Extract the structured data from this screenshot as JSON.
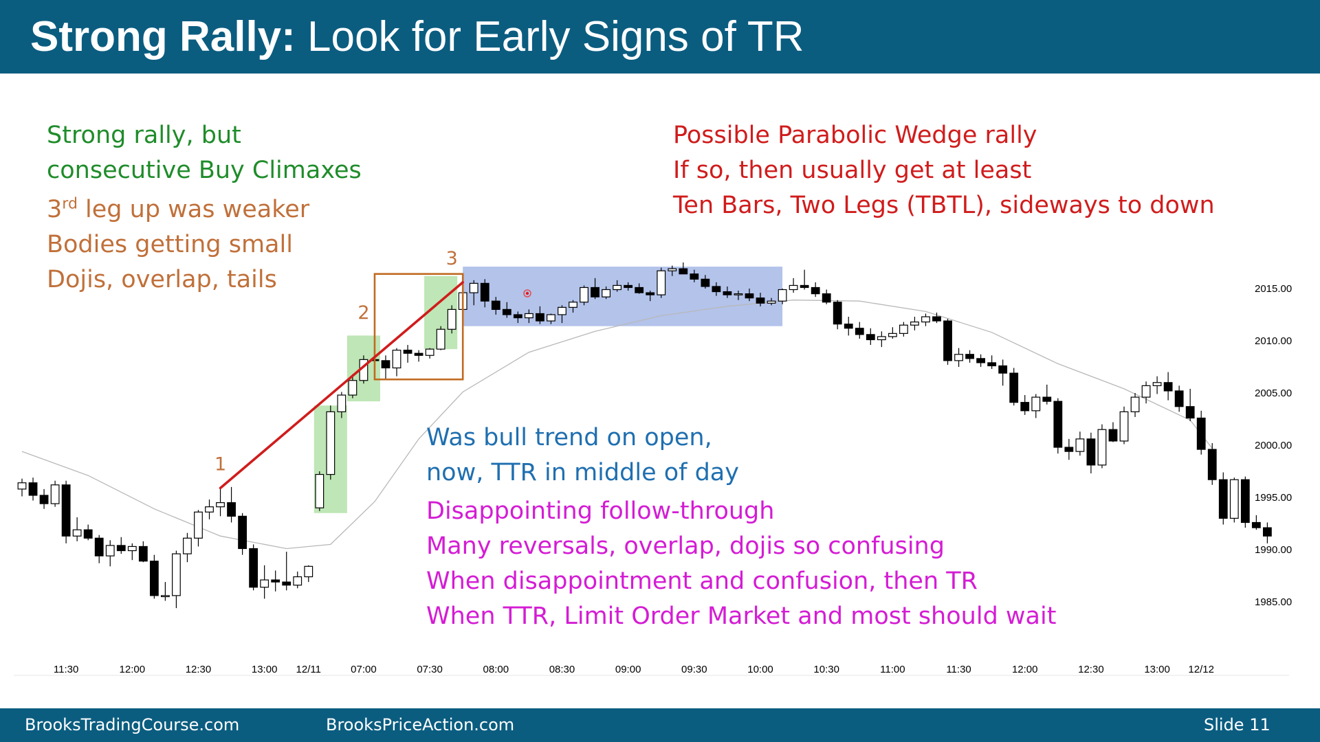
{
  "slide": {
    "title_bold": "Strong Rally:",
    "title_rest": " Look for Early Signs of TR"
  },
  "footer": {
    "left": "BrooksTradingCourse.com",
    "center": "BrooksPriceAction.com",
    "right": "Slide  11"
  },
  "notes": {
    "green": [
      "Strong rally, but",
      "consecutive Buy Climaxes"
    ],
    "brown_first_pre": "3",
    "brown_first_sup": "rd",
    "brown_first_post": " leg up was weaker",
    "brown": [
      "Bodies getting small",
      "Dojis, overlap, tails"
    ],
    "red": [
      "Possible Parabolic Wedge rally",
      "If so, then usually get at least",
      "Ten Bars, Two Legs (TBTL), sideways to down"
    ],
    "blue": [
      "Was bull trend on open,",
      "now, TTR in middle of day"
    ],
    "magenta": [
      "Disappointing follow-through",
      "Many reversals, overlap, dojis so confusing",
      "When disappointment and confusion, then TR",
      "When TTR, Limit Order Market and most should wait"
    ]
  },
  "colors": {
    "header": "#0b5d80",
    "bull_candle": "#ffffff",
    "bear_candle": "#000000",
    "moving_average": "#b8b8b8",
    "wedge_line": "#d01c1c",
    "climax_box": "#c06a20",
    "trading_range_box": "#b3c3ea",
    "climax_bar_highlight": "#bfe6b6",
    "label_orange": "#c0703a"
  },
  "chart_data": {
    "type": "candlestick",
    "y_ticks": [
      "2015.00",
      "2010.00",
      "2005.00",
      "2000.00",
      "1995.00",
      "1990.00",
      "1985.00"
    ],
    "y_tick_values": [
      2015,
      2010,
      2005,
      2000,
      1995,
      1990,
      1985
    ],
    "ylim": [
      1983,
      2018.5
    ],
    "x_ticks": [
      "11:30",
      "12:00",
      "12:30",
      "13:00",
      "12/11",
      "07:00",
      "07:30",
      "08:00",
      "08:30",
      "09:00",
      "09:30",
      "10:00",
      "10:30",
      "11:00",
      "11:30",
      "12:00",
      "12:30",
      "13:00",
      "12/12"
    ],
    "x_tick_bar_index": [
      4,
      10,
      16,
      22,
      26,
      31,
      37,
      43,
      49,
      55,
      61,
      67,
      73,
      79,
      85,
      91,
      97,
      103,
      107
    ],
    "leg_labels": [
      "1",
      "2",
      "3"
    ],
    "leg_label_bar_index": [
      18,
      31,
      39
    ],
    "leg_label_values": [
      1997.6,
      2012.1,
      2017.3
    ],
    "wedge_line": {
      "from_bar": 18,
      "from_value": 1995.9,
      "to_bar": 40,
      "to_value": 2015.6
    },
    "trading_range_box": {
      "from_bar": 40,
      "to_bar": 69,
      "low": 2011.4,
      "high": 2017.1
    },
    "climax_box": {
      "from_bar": 32,
      "to_bar": 40,
      "low": 2006.3,
      "high": 2016.4
    },
    "climax_highlights": [
      {
        "from_bar": 26.5,
        "to_bar": 29.5,
        "low": 1993.5,
        "high": 2003.8
      },
      {
        "from_bar": 29.5,
        "to_bar": 32.5,
        "low": 2004.2,
        "high": 2010.5
      },
      {
        "from_bar": 36.5,
        "to_bar": 39.5,
        "low": 2009.2,
        "high": 2016.2
      }
    ],
    "bars": [
      [
        1995.8,
        1996.8,
        1995.1,
        1996.4
      ],
      [
        1996.4,
        1996.9,
        1994.7,
        1995.2
      ],
      [
        1995.2,
        1995.8,
        1993.9,
        1994.4
      ],
      [
        1994.4,
        1996.6,
        1994.1,
        1996.2
      ],
      [
        1996.2,
        1996.6,
        1990.6,
        1991.3
      ],
      [
        1991.3,
        1993.1,
        1990.8,
        1991.9
      ],
      [
        1991.9,
        1992.4,
        1990.9,
        1991.1
      ],
      [
        1991.1,
        1991.4,
        1988.7,
        1989.4
      ],
      [
        1989.4,
        1990.9,
        1988.4,
        1990.4
      ],
      [
        1990.4,
        1991.2,
        1989.6,
        1989.9
      ],
      [
        1989.9,
        1990.6,
        1989.0,
        1990.3
      ],
      [
        1990.3,
        1990.8,
        1988.8,
        1988.9
      ],
      [
        1988.9,
        1989.5,
        1985.3,
        1985.6
      ],
      [
        1985.6,
        1986.9,
        1985.1,
        1985.6
      ],
      [
        1985.6,
        1989.9,
        1984.4,
        1989.6
      ],
      [
        1989.6,
        1991.6,
        1988.8,
        1991.1
      ],
      [
        1991.1,
        1993.8,
        1990.3,
        1993.6
      ],
      [
        1993.6,
        1994.8,
        1992.9,
        1994.1
      ],
      [
        1994.1,
        1995.9,
        1993.2,
        1994.5
      ],
      [
        1994.5,
        1996.0,
        1992.6,
        1993.2
      ],
      [
        1993.2,
        1993.5,
        1989.5,
        1990.1
      ],
      [
        1990.1,
        1990.5,
        1986.1,
        1986.4
      ],
      [
        1986.4,
        1988.5,
        1985.3,
        1987.1
      ],
      [
        1987.1,
        1988.0,
        1986.0,
        1986.9
      ],
      [
        1986.9,
        1989.8,
        1986.1,
        1986.6
      ],
      [
        1986.6,
        1987.9,
        1986.3,
        1987.4
      ],
      [
        1987.4,
        1988.5,
        1986.9,
        1988.4
      ],
      [
        1994.0,
        1997.5,
        1993.7,
        1997.2
      ],
      [
        1997.2,
        2003.8,
        1996.7,
        2003.2
      ],
      [
        2003.2,
        2005.1,
        2002.6,
        2004.8
      ],
      [
        2004.8,
        2006.8,
        2004.5,
        2006.2
      ],
      [
        2006.2,
        2008.6,
        2005.9,
        2008.2
      ],
      [
        2008.2,
        2010.1,
        2007.4,
        2008.1
      ],
      [
        2008.1,
        2008.6,
        2006.3,
        2007.4
      ],
      [
        2007.4,
        2009.3,
        2006.6,
        2009.1
      ],
      [
        2009.1,
        2009.6,
        2007.9,
        2008.8
      ],
      [
        2008.8,
        2009.1,
        2008.0,
        2008.6
      ],
      [
        2008.6,
        2009.3,
        2008.3,
        2009.2
      ],
      [
        2009.2,
        2011.4,
        2009.1,
        2011.1
      ],
      [
        2011.1,
        2013.4,
        2010.7,
        2013.0
      ],
      [
        2013.0,
        2015.1,
        2012.8,
        2014.6
      ],
      [
        2014.6,
        2015.8,
        2013.4,
        2015.5
      ],
      [
        2015.5,
        2015.9,
        2013.2,
        2013.8
      ],
      [
        2013.8,
        2014.2,
        2012.5,
        2013.0
      ],
      [
        2013.0,
        2013.7,
        2012.2,
        2012.5
      ],
      [
        2012.5,
        2012.8,
        2011.7,
        2012.2
      ],
      [
        2012.2,
        2013.0,
        2011.7,
        2012.6
      ],
      [
        2012.6,
        2013.3,
        2011.6,
        2011.9
      ],
      [
        2011.9,
        2012.6,
        2011.6,
        2012.5
      ],
      [
        2012.5,
        2013.4,
        2011.7,
        2013.2
      ],
      [
        2013.2,
        2013.9,
        2012.7,
        2013.7
      ],
      [
        2013.7,
        2015.3,
        2013.4,
        2015.1
      ],
      [
        2015.1,
        2016.0,
        2014.0,
        2014.2
      ],
      [
        2014.2,
        2015.2,
        2014.0,
        2014.9
      ],
      [
        2014.9,
        2015.8,
        2014.7,
        2015.3
      ],
      [
        2015.3,
        2015.6,
        2014.8,
        2015.1
      ],
      [
        2015.1,
        2015.5,
        2014.5,
        2014.6
      ],
      [
        2014.6,
        2014.8,
        2013.8,
        2014.4
      ],
      [
        2014.4,
        2017.0,
        2014.1,
        2016.7
      ],
      [
        2016.7,
        2017.2,
        2016.2,
        2016.9
      ],
      [
        2016.9,
        2017.5,
        2016.6,
        2016.4
      ],
      [
        2016.4,
        2016.8,
        2015.6,
        2015.9
      ],
      [
        2015.9,
        2016.3,
        2015.0,
        2015.2
      ],
      [
        2015.2,
        2015.6,
        2014.3,
        2014.7
      ],
      [
        2014.7,
        2015.2,
        2014.1,
        2014.4
      ],
      [
        2014.4,
        2014.8,
        2013.9,
        2014.5
      ],
      [
        2014.5,
        2015.0,
        2013.8,
        2014.1
      ],
      [
        2014.1,
        2014.6,
        2013.3,
        2013.6
      ],
      [
        2013.6,
        2014.1,
        2013.4,
        2013.8
      ],
      [
        2013.8,
        2015.0,
        2013.5,
        2014.9
      ],
      [
        2014.9,
        2016.0,
        2014.6,
        2015.3
      ],
      [
        2015.3,
        2016.8,
        2014.9,
        2015.1
      ],
      [
        2015.1,
        2015.6,
        2014.2,
        2014.5
      ],
      [
        2014.5,
        2014.9,
        2013.5,
        2013.7
      ],
      [
        2013.7,
        2013.9,
        2011.1,
        2011.6
      ],
      [
        2011.6,
        2012.3,
        2010.5,
        2011.2
      ],
      [
        2011.2,
        2011.8,
        2010.2,
        2010.6
      ],
      [
        2010.6,
        2011.2,
        2009.6,
        2010.1
      ],
      [
        2010.1,
        2010.9,
        2009.4,
        2010.4
      ],
      [
        2010.4,
        2011.3,
        2010.2,
        2010.7
      ],
      [
        2010.7,
        2011.8,
        2010.4,
        2011.5
      ],
      [
        2011.5,
        2012.3,
        2011.0,
        2011.8
      ],
      [
        2011.8,
        2012.6,
        2011.4,
        2012.3
      ],
      [
        2012.3,
        2012.7,
        2011.7,
        2011.9
      ],
      [
        2011.9,
        2012.1,
        2007.7,
        2008.1
      ],
      [
        2008.1,
        2009.3,
        2007.5,
        2008.7
      ],
      [
        2008.7,
        2009.1,
        2007.9,
        2008.3
      ],
      [
        2008.3,
        2008.7,
        2007.5,
        2007.9
      ],
      [
        2007.9,
        2008.6,
        2007.3,
        2007.6
      ],
      [
        2007.6,
        2008.2,
        2005.7,
        2006.9
      ],
      [
        2006.9,
        2007.4,
        2003.8,
        2004.1
      ],
      [
        2004.1,
        2004.8,
        2002.9,
        2003.3
      ],
      [
        2003.3,
        2004.9,
        2002.6,
        2004.6
      ],
      [
        2004.6,
        2005.8,
        2003.9,
        2004.2
      ],
      [
        2004.2,
        2004.5,
        1999.2,
        1999.8
      ],
      [
        1999.8,
        2000.6,
        1998.6,
        1999.4
      ],
      [
        1999.4,
        2001.3,
        1999.0,
        2000.6
      ],
      [
        2000.6,
        2001.2,
        1997.3,
        1998.1
      ],
      [
        1998.1,
        2002.0,
        1997.8,
        2001.5
      ],
      [
        2001.5,
        2002.2,
        2000.3,
        2000.4
      ],
      [
        2000.4,
        2003.7,
        2000.1,
        2003.2
      ],
      [
        2003.2,
        2005.0,
        2002.7,
        2004.6
      ],
      [
        2004.6,
        2006.1,
        2004.0,
        2005.7
      ],
      [
        2005.7,
        2006.6,
        2004.9,
        2006.0
      ],
      [
        2006.0,
        2007.0,
        2004.3,
        2005.2
      ],
      [
        2005.2,
        2005.7,
        2003.2,
        2003.7
      ],
      [
        2003.7,
        2005.4,
        2002.3,
        2002.6
      ],
      [
        2002.6,
        2003.3,
        1999.1,
        1999.6
      ],
      [
        1999.6,
        2000.2,
        1996.2,
        1996.7
      ],
      [
        1996.7,
        1997.4,
        1992.4,
        1993.0
      ],
      [
        1993.0,
        1996.9,
        1992.6,
        1996.7
      ],
      [
        1996.7,
        1997.0,
        1992.1,
        1992.6
      ],
      [
        1992.6,
        1993.3,
        1991.9,
        1992.1
      ],
      [
        1992.1,
        1992.6,
        1990.6,
        1991.3
      ]
    ],
    "moving_average": [
      [
        0,
        1999.4
      ],
      [
        6,
        1997.1
      ],
      [
        12,
        1993.9
      ],
      [
        18,
        1991.3
      ],
      [
        24,
        1990.1
      ],
      [
        28,
        1990.5
      ],
      [
        32,
        1994.6
      ],
      [
        36,
        2000.6
      ],
      [
        40,
        2005.1
      ],
      [
        46,
        2008.9
      ],
      [
        52,
        2010.9
      ],
      [
        58,
        2012.4
      ],
      [
        64,
        2013.3
      ],
      [
        70,
        2013.9
      ],
      [
        76,
        2013.8
      ],
      [
        82,
        2012.8
      ],
      [
        88,
        2010.8
      ],
      [
        94,
        2007.8
      ],
      [
        100,
        2005.4
      ],
      [
        106,
        2002.4
      ],
      [
        108,
        1999.7
      ]
    ]
  }
}
